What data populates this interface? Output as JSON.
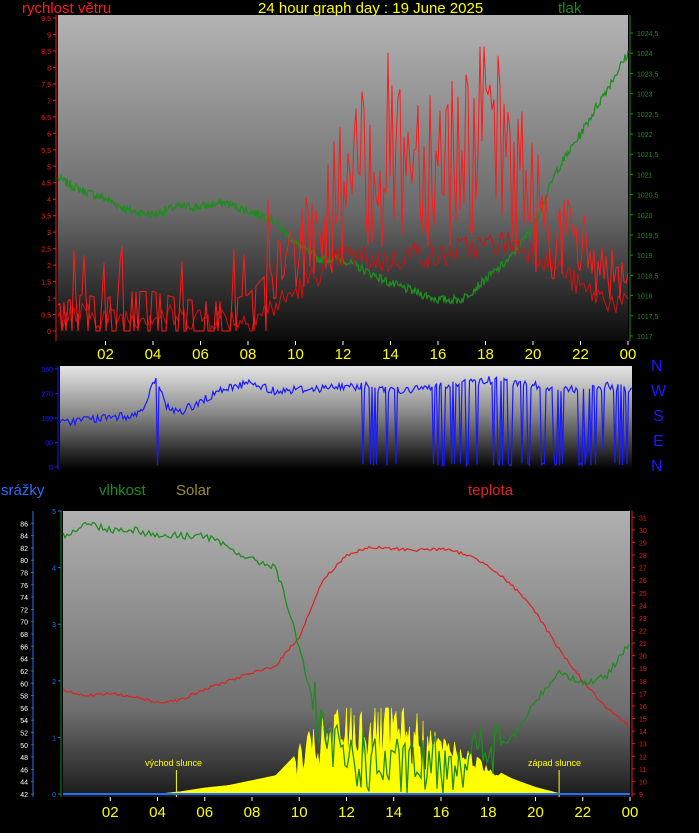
{
  "header": {
    "wind_label": "rychlost větru",
    "title": "24 hour graph day : 19 June 2025",
    "pressure_label": "tlak"
  },
  "compass": [
    "N",
    "W",
    "S",
    "E",
    "N"
  ],
  "labels2": {
    "rain": "srážky",
    "humidity": "vlhkost",
    "solar": "Solar",
    "temperature": "teplota",
    "sunrise": "východ slunce",
    "sunset": "západ slunce"
  },
  "colors": {
    "wind": "#ff1a1a",
    "pressure": "#1e8c1e",
    "direction": "#1a1aff",
    "rain": "#2a6cff",
    "humidity": "#1e8c1e",
    "solar": "#ffff00",
    "temperature": "#e02020",
    "title": "#ffff00"
  },
  "chart_data": [
    {
      "type": "line",
      "x_ticks": [
        "02",
        "04",
        "06",
        "08",
        "10",
        "12",
        "14",
        "16",
        "18",
        "20",
        "22",
        "00"
      ],
      "left_axis": {
        "ylim": [
          0,
          9.5
        ],
        "ticks": [
          "0",
          "0,5",
          "1",
          "1,5",
          "2",
          "2,5",
          "3",
          "3,5",
          "4",
          "4,5",
          "5",
          "5,5",
          "6",
          "6,5",
          "7",
          "7,5",
          "8",
          "8,5",
          "9",
          "9,5"
        ]
      },
      "right_axis": {
        "ylim": [
          1016.875,
          1024.625
        ],
        "ticks": [
          "1017",
          "1017,5",
          "1018",
          "1018,5",
          "1019",
          "1019,5",
          "1020",
          "1020,5",
          "1021",
          "1021,5",
          "1022",
          "1022,5",
          "1023",
          "1023,5",
          "1024",
          "1024,5"
        ]
      },
      "series": [
        {
          "axis": "right",
          "x": [
            0,
            1,
            2,
            3,
            4,
            5,
            6,
            7,
            8,
            9,
            10,
            11,
            12,
            13,
            14,
            15,
            16,
            17,
            18,
            19,
            20,
            21,
            22,
            23,
            24
          ],
          "values": [
            1020.9,
            1020.6,
            1020.4,
            1020.1,
            1020.0,
            1020.2,
            1020.2,
            1020.3,
            1020.1,
            1019.9,
            1019.3,
            1018.9,
            1018.9,
            1018.6,
            1018.3,
            1018.1,
            1017.9,
            1017.9,
            1018.4,
            1018.9,
            1019.7,
            1021.1,
            1022.0,
            1023.0,
            1024.0
          ]
        },
        {
          "axis": "left",
          "x": [
            0,
            1,
            2,
            3,
            4,
            5,
            6,
            7,
            8,
            9,
            10,
            11,
            12,
            13,
            14,
            15,
            16,
            17,
            18,
            19,
            20,
            21,
            22,
            23,
            24
          ],
          "values": [
            0.4,
            0.5,
            0.4,
            0.4,
            0.5,
            0.4,
            0.4,
            0.4,
            0.3,
            0.7,
            1.2,
            1.8,
            2.3,
            2.2,
            2.1,
            2.4,
            2.2,
            2.5,
            2.6,
            2.7,
            2.4,
            2.0,
            1.3,
            1.0,
            0.7
          ]
        },
        {
          "axis": "left",
          "x": [
            0,
            1,
            2,
            3,
            4,
            5,
            6,
            7,
            8,
            9,
            10,
            11,
            12,
            13,
            14,
            15,
            16,
            17,
            18,
            19,
            20,
            21,
            22,
            23,
            24
          ],
          "values": [
            0.8,
            1.1,
            1.0,
            1.2,
            1.2,
            1.0,
            0.9,
            0.9,
            1.1,
            1.9,
            2.9,
            3.5,
            5.2,
            5.7,
            6.6,
            6.5,
            6.4,
            6.6,
            6.8,
            6.3,
            4.6,
            3.5,
            2.9,
            2.3,
            1.4
          ]
        }
      ]
    },
    {
      "type": "line",
      "x_ticks": [],
      "ylim": [
        0,
        360
      ],
      "y_ticks": [
        "0",
        "90",
        "180",
        "270",
        "360"
      ],
      "series": [
        {
          "x": [
            0,
            1,
            2,
            3,
            3.5,
            4,
            4.5,
            5,
            6,
            7,
            8,
            9,
            10,
            11,
            12,
            13,
            14,
            15,
            16,
            17,
            18,
            19,
            20,
            21,
            22,
            23,
            24
          ],
          "values": [
            160,
            175,
            180,
            190,
            210,
            320,
            220,
            200,
            245,
            290,
            310,
            280,
            285,
            290,
            295,
            300,
            280,
            285,
            300,
            310,
            320,
            310,
            300,
            290,
            280,
            300,
            280
          ]
        }
      ]
    },
    {
      "type": "line",
      "x_ticks": [
        "02",
        "04",
        "06",
        "08",
        "10",
        "12",
        "14",
        "16",
        "18",
        "20",
        "22",
        "00"
      ],
      "left_axis": {
        "ylim": [
          42,
          88
        ],
        "ticks": [
          "42",
          "44",
          "46",
          "48",
          "50",
          "52",
          "54",
          "56",
          "58",
          "60",
          "62",
          "64",
          "66",
          "68",
          "70",
          "72",
          "74",
          "76",
          "78",
          "80",
          "82",
          "84",
          "86"
        ]
      },
      "right_axis": {
        "ylim": [
          9,
          31.5
        ],
        "ticks": [
          "9",
          "10",
          "11",
          "12",
          "13",
          "14",
          "15",
          "16",
          "17",
          "18",
          "19",
          "20",
          "21",
          "22",
          "23",
          "24",
          "25",
          "26",
          "27",
          "28",
          "29",
          "30",
          "31"
        ]
      },
      "rain_axis": {
        "ylim": [
          0,
          5
        ],
        "ticks": [
          "0",
          "1",
          "2",
          "3",
          "4",
          "5"
        ]
      },
      "series": [
        {
          "axis": "left",
          "x": [
            0,
            1,
            2,
            3,
            4,
            5,
            6,
            7,
            8,
            9,
            10,
            11,
            12,
            13,
            14,
            15,
            16,
            17,
            18,
            19,
            20,
            21,
            22,
            23,
            24
          ],
          "values": [
            84,
            86,
            85,
            85,
            84,
            84,
            84,
            82,
            80,
            79,
            66,
            50,
            48,
            47,
            46,
            46,
            47,
            48,
            49,
            51,
            57,
            62,
            60,
            61,
            67
          ]
        },
        {
          "axis": "right",
          "x": [
            0,
            1,
            2,
            3,
            4,
            5,
            6,
            7,
            8,
            9,
            10,
            11,
            12,
            13,
            14,
            15,
            16,
            17,
            18,
            19,
            20,
            21,
            22,
            23,
            24
          ],
          "values": [
            17.3,
            16.8,
            17.0,
            16.7,
            16.3,
            16.5,
            17.3,
            18.0,
            18.6,
            19.2,
            21.5,
            26.0,
            28.0,
            28.6,
            28.5,
            28.4,
            28.5,
            28.1,
            27.2,
            25.6,
            23.5,
            20.5,
            18.0,
            15.8,
            14.3
          ]
        },
        {
          "axis": "left",
          "x": [
            0,
            4,
            5,
            6,
            7,
            8,
            9,
            10,
            11,
            12,
            13,
            14,
            15,
            16,
            17,
            18,
            19,
            20,
            21,
            24
          ],
          "values": [
            42,
            42,
            42.4,
            43.0,
            43.4,
            44.2,
            45.0,
            49.0,
            52.0,
            55.0,
            54.8,
            54.0,
            52.5,
            51.0,
            49.0,
            46.5,
            44.5,
            43.1,
            42.1,
            42
          ]
        },
        {
          "axis": "rain",
          "x": [
            0,
            24
          ],
          "values": [
            0,
            0
          ]
        }
      ]
    }
  ]
}
